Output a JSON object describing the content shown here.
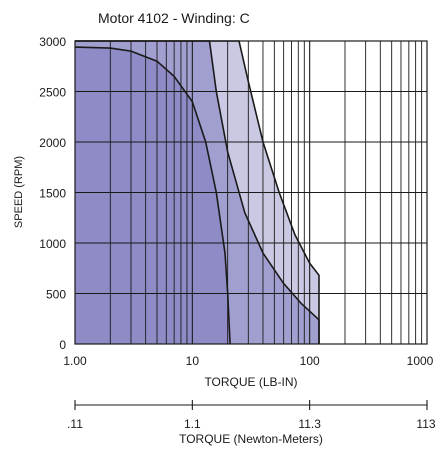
{
  "chart_data": {
    "type": "area",
    "title": "Motor 4102 - Winding: C",
    "xlabel": "TORQUE (LB-IN)",
    "ylabel": "SPEED (RPM)",
    "x_scale": "log",
    "xlim": [
      1,
      1000
    ],
    "ylim": [
      0,
      3000
    ],
    "x_ticks": [
      "1.00",
      "10",
      "100",
      "1000"
    ],
    "y_ticks": [
      "0",
      "500",
      "1000",
      "1500",
      "2000",
      "2500",
      "3000"
    ],
    "grid": true,
    "secondary_axis": {
      "label": "TORQUE (Newton-Meters)",
      "ticks": [
        ".11",
        "1.1",
        "11.3",
        "113"
      ]
    },
    "series": [
      {
        "color": "#c9c9e3",
        "points": [
          [
            1,
            3000
          ],
          [
            25,
            3000
          ],
          [
            30,
            2600
          ],
          [
            40,
            2000
          ],
          [
            55,
            1500
          ],
          [
            75,
            1080
          ],
          [
            100,
            800
          ],
          [
            120,
            680
          ],
          [
            120,
            0
          ],
          [
            1,
            0
          ]
        ]
      },
      {
        "color": "#a19fcf",
        "points": [
          [
            1,
            3000
          ],
          [
            14,
            3000
          ],
          [
            16,
            2500
          ],
          [
            20,
            1900
          ],
          [
            28,
            1300
          ],
          [
            40,
            900
          ],
          [
            60,
            600
          ],
          [
            85,
            400
          ],
          [
            120,
            240
          ],
          [
            120,
            0
          ],
          [
            1,
            0
          ]
        ]
      },
      {
        "color": "#8e8bc6",
        "points": [
          [
            1,
            2940
          ],
          [
            2,
            2930
          ],
          [
            3,
            2900
          ],
          [
            5,
            2800
          ],
          [
            7,
            2650
          ],
          [
            10,
            2400
          ],
          [
            13,
            2000
          ],
          [
            16,
            1500
          ],
          [
            19,
            900
          ],
          [
            20,
            500
          ],
          [
            21,
            0
          ],
          [
            1,
            0
          ]
        ]
      }
    ]
  }
}
